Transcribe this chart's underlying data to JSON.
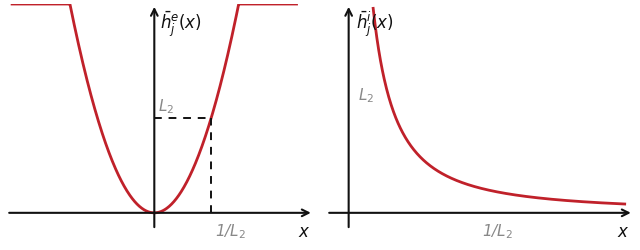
{
  "fig_width": 6.4,
  "fig_height": 2.51,
  "dpi": 100,
  "curve_color": "#c0212a",
  "curve_lw": 2.0,
  "axis_color": "#111111",
  "text_color": "#888888",
  "label_color": "#111111",
  "left_title": "$\\bar{h}^{e}_{j}(x)$",
  "right_title": "$\\bar{h}^{i}_{j}(x)$",
  "xlabel": "$x$",
  "L2_label": "L$_2$",
  "inv_L2_label": "1/L$_2$",
  "dashed_color": "#111111",
  "background_color": "#ffffff"
}
